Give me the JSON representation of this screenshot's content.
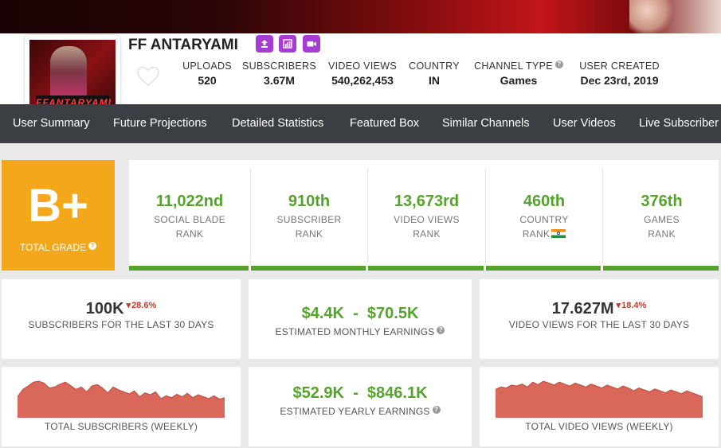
{
  "channel": {
    "name": "FF ANTARYAMI",
    "avatar_text": "FFANTARYAMI"
  },
  "profile_icons": [
    "upload-icon",
    "bar-chart-icon",
    "video-camera-icon"
  ],
  "stats": [
    {
      "label": "UPLOADS",
      "value": "520"
    },
    {
      "label": "SUBSCRIBERS",
      "value": "3.67M"
    },
    {
      "label": "VIDEO VIEWS",
      "value": "540,262,453"
    },
    {
      "label": "COUNTRY",
      "value": "IN"
    },
    {
      "label": "CHANNEL TYPE",
      "value": "Games"
    },
    {
      "label": "USER CREATED",
      "value": "Dec 23rd, 2019"
    }
  ],
  "nav": [
    "User Summary",
    "Future Projections",
    "Detailed Statistics",
    "Featured Box",
    "Similar Channels",
    "User Videos",
    "Live Subscriber"
  ],
  "grade": {
    "value": "B+",
    "label": "TOTAL GRADE"
  },
  "ranks": [
    {
      "value": "11,022nd",
      "line1": "SOCIAL BLADE",
      "line2": "RANK"
    },
    {
      "value": "910th",
      "line1": "SUBSCRIBER",
      "line2": "RANK"
    },
    {
      "value": "13,673rd",
      "line1": "VIDEO VIEWS",
      "line2": "RANK"
    },
    {
      "value": "460th",
      "line1": "COUNTRY",
      "line2": "RANK"
    },
    {
      "value": "376th",
      "line1": "GAMES",
      "line2": "RANK"
    }
  ],
  "cards": {
    "subs30": {
      "value": "100K",
      "change": "28.6%",
      "label": "SUBSCRIBERS FOR THE LAST 30 DAYS"
    },
    "monthly": {
      "low": "$4.4K",
      "sep": "-",
      "high": "$70.5K",
      "label": "ESTIMATED MONTHLY EARNINGS"
    },
    "views30": {
      "value": "17.627M",
      "change": "18.4%",
      "label": "VIDEO VIEWS FOR THE LAST 30 DAYS"
    },
    "subs_weekly": {
      "label": "TOTAL SUBSCRIBERS (WEEKLY)"
    },
    "yearly": {
      "low": "$52.9K",
      "sep": "-",
      "high": "$846.1K",
      "label": "ESTIMATED YEARLY EARNINGS"
    },
    "views_weekly": {
      "label": "TOTAL VIDEO VIEWS (WEEKLY)"
    }
  },
  "colors": {
    "accent_green": "#55a32c",
    "grade_orange": "#f3a81c",
    "nav_bg": "#3b3f44",
    "spark": "#d9675a",
    "badge_purple": "#a63cd3",
    "down_red": "#c0392b"
  },
  "chart_data": [
    {
      "type": "area",
      "title": "TOTAL SUBSCRIBERS (WEEKLY)",
      "values": [
        40,
        55,
        62,
        70,
        72,
        68,
        58,
        60,
        66,
        70,
        63,
        55,
        60,
        50,
        62,
        65,
        58,
        48,
        60,
        54,
        50,
        46,
        52,
        40,
        48,
        44,
        50,
        36,
        42,
        38,
        45,
        40,
        47,
        38,
        44,
        40,
        36,
        42,
        35,
        38
      ]
    },
    {
      "type": "area",
      "title": "TOTAL VIDEO VIEWS (WEEKLY)",
      "values": [
        55,
        60,
        58,
        64,
        62,
        66,
        60,
        70,
        65,
        72,
        68,
        64,
        70,
        66,
        62,
        68,
        64,
        60,
        66,
        62,
        58,
        64,
        60,
        56,
        62,
        58,
        52,
        58,
        54,
        50,
        56,
        52,
        48,
        54,
        50,
        46,
        52,
        48,
        44,
        40
      ]
    }
  ]
}
